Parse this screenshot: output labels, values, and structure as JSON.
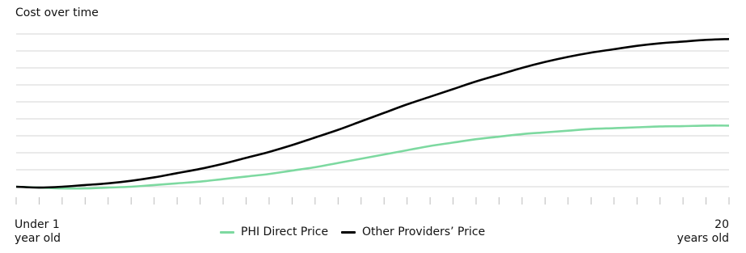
{
  "chart_data": {
    "type": "line",
    "title": "Cost over time",
    "categories": [
      "Under 1\nyear old",
      null,
      null,
      null,
      null,
      null,
      null,
      null,
      null,
      null,
      null,
      null,
      null,
      null,
      null,
      null,
      null,
      null,
      null,
      null,
      null,
      null,
      null,
      null,
      null,
      null,
      null,
      null,
      null,
      null,
      null,
      "20\nyears old"
    ],
    "series": [
      {
        "name": "PHI Direct Price",
        "color": "#7dd9a0",
        "values": [
          0,
          -0.05,
          -0.1,
          -0.1,
          -0.05,
          0,
          0.1,
          0.2,
          0.3,
          0.45,
          0.6,
          0.75,
          0.95,
          1.15,
          1.4,
          1.65,
          1.9,
          2.15,
          2.4,
          2.6,
          2.8,
          2.95,
          3.1,
          3.2,
          3.3,
          3.4,
          3.45,
          3.5,
          3.55,
          3.57,
          3.6,
          3.6
        ]
      },
      {
        "name": "Other Providers’ Price",
        "color": "#000000",
        "values": [
          0,
          -0.05,
          0,
          0.1,
          0.2,
          0.35,
          0.55,
          0.8,
          1.05,
          1.35,
          1.7,
          2.05,
          2.45,
          2.9,
          3.35,
          3.85,
          4.35,
          4.85,
          5.3,
          5.75,
          6.2,
          6.6,
          7.0,
          7.35,
          7.65,
          7.9,
          8.1,
          8.3,
          8.45,
          8.55,
          8.65,
          8.7
        ]
      }
    ],
    "ylim": [
      0,
      9
    ],
    "yticks": [
      0,
      1,
      2,
      3,
      4,
      5,
      6,
      7,
      8,
      9
    ],
    "grid": true
  }
}
